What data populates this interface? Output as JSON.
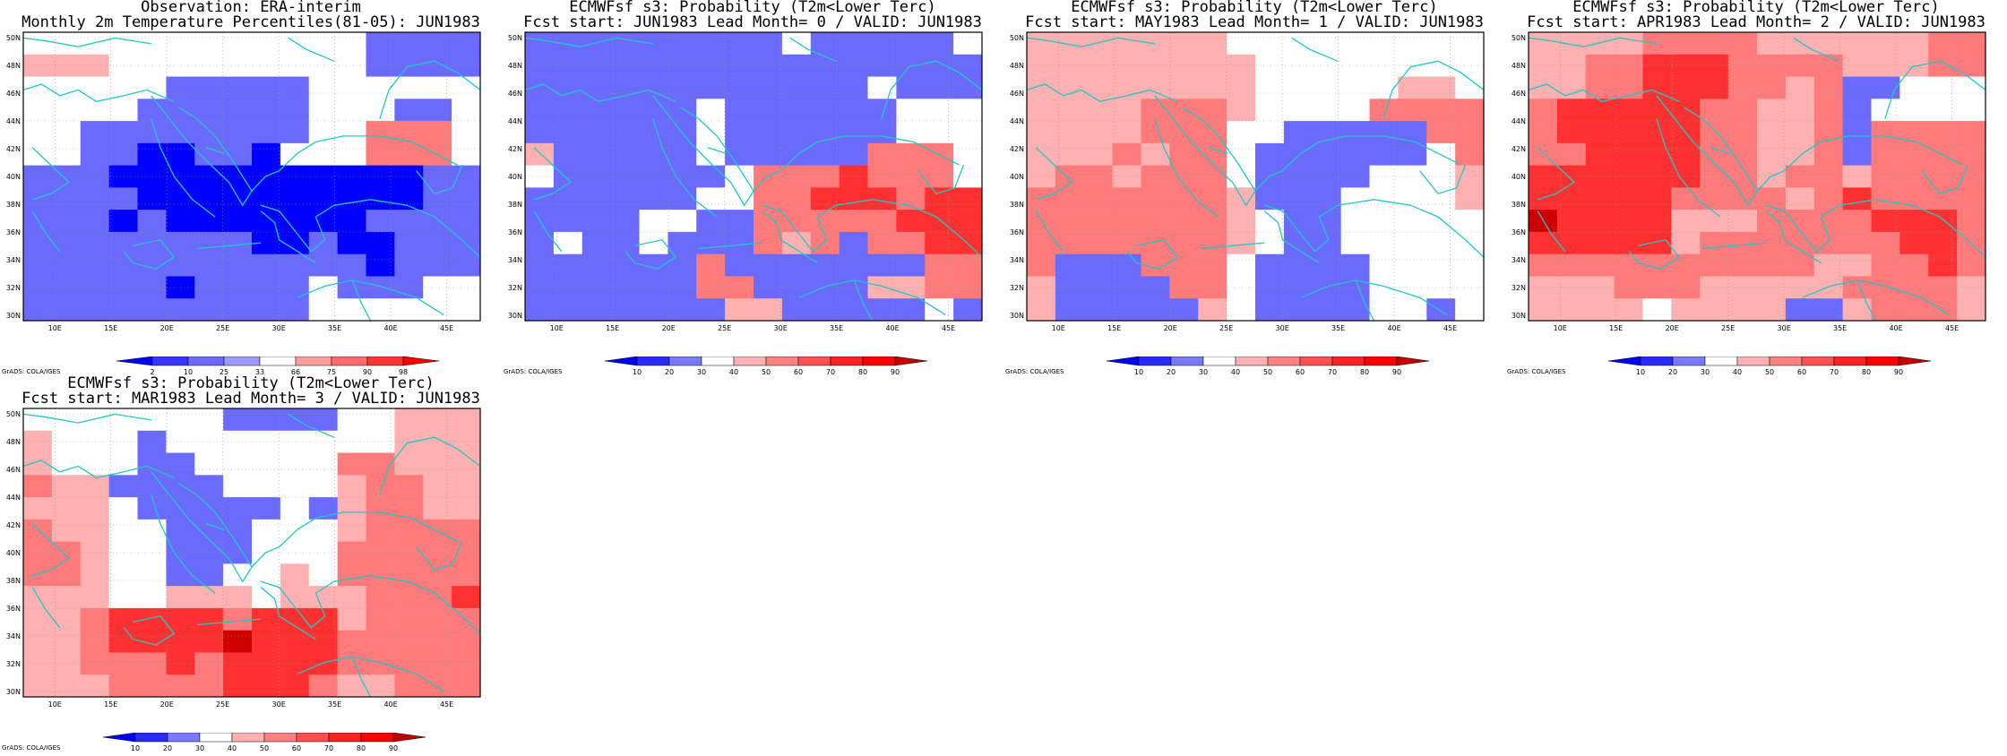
{
  "panels": [
    {
      "title_line1": "Observation: ERA-interim",
      "title_line2": "Monthly 2m Temperature Percentiles(81-05): JUN1983",
      "colorbar": {
        "ticks": [
          "2",
          "10",
          "25",
          "33",
          "66",
          "75",
          "90",
          "98"
        ],
        "colors": [
          "#0000ff",
          "#3535ff",
          "#6a6aff",
          "#9a9aff",
          "#ffffff",
          "#ff9a9a",
          "#ff6a6a",
          "#ff3535",
          "#ff0000"
        ]
      },
      "credit": "GrADS: COLA/IGES",
      "grid": [
        "WWWWWWWWWWWWBBBB",
        "LLLWWWWWWWWWBBBB",
        "WWWWWBBBBBWWWWWW",
        "WWWWBBBBBBWWWBBW",
        "WWBBBBBBBBWWRRRW",
        "WWBBCCBBCWWWRRRW",
        "BBBCCCCCCCCCCCBB",
        "BBBBCCCCCCCCCCBB",
        "BBBCBCCCCCCCBBBB",
        "BBBBBBBBCCBCCBBB",
        "BBBBBBBBBBBBCBBB",
        "BBBBBCBBBBWBBBWW",
        "BBBBBBBBBBWWWWWW"
      ]
    },
    {
      "title_line1": "ECMWFsf s3: Probability (T2m<Lower Terc)",
      "title_line2": "Fcst start: JUN1983  Lead Month= 0 / VALID: JUN1983",
      "colorbar": {
        "ticks": [
          "10",
          "20",
          "30",
          "40",
          "50",
          "60",
          "70",
          "80",
          "90"
        ],
        "colors": [
          "#0000ff",
          "#2a2aff",
          "#7a7aff",
          "#ffffff",
          "#ffb0b0",
          "#ff8080",
          "#ff5050",
          "#ff2020",
          "#ff0000",
          "#c00000"
        ]
      },
      "credit": "GrADS: COLA/IGES",
      "grid": [
        "BBBBBBBBBWBBBBBW",
        "BBBBBBBBBBBBBBBB",
        "BBBBBBBBBBBBWBBB",
        "BBBBBBWBBBBBBWWW",
        "BBBBBBWBBBBBBWWW",
        "LBBBBBWBBBBBRRRW",
        "WBBBBBBWRRRMRRRW",
        "BBBBBBWWRRMMMRMM",
        "BBBBWWBBRRRRRMMM",
        "BWBBWBBBRLRBRRMM",
        "BBBBBBRBBBBBBBRR",
        "BBBBBBRRBBBBLLRR",
        "BBBBBBBLLBBBBBWB"
      ]
    },
    {
      "title_line1": "ECMWFsf s3: Probability (T2m<Lower Terc)",
      "title_line2": "Fcst start: MAY1983  Lead Month= 1 / VALID: JUN1983",
      "colorbar": {
        "ticks": [
          "10",
          "20",
          "30",
          "40",
          "50",
          "60",
          "70",
          "80",
          "90"
        ],
        "colors": [
          "#0000ff",
          "#2a2aff",
          "#7a7aff",
          "#ffffff",
          "#ffb0b0",
          "#ff8080",
          "#ff5050",
          "#ff2020",
          "#ff0000",
          "#c00000"
        ]
      },
      "credit": "GrADS: COLA/IGES",
      "grid": [
        "LLLLLLLWWWWWWWWW",
        "LLLLLLLLWWWWWWWW",
        "LLLLLLLLWWWWWLLW",
        "LLLLRRRLWWWWRRRR",
        "LLLLRRRWWBBBBBRR",
        "LLLRLRRWBBBBBBWR",
        "LRRLRRRWBBBBWWWL",
        "RRRRRRRLBBBWWWWL",
        "RRRRRRRLWBBWWWWW",
        "RRRRRRRLWBBWWWWW",
        "RBBBRRRWBBBBWWWW",
        "LBBBBRRWBBBBWWWW",
        "LBBBBBLWBBBBWWBW"
      ]
    },
    {
      "title_line1": "ECMWFsf s3: Probability (T2m<Lower Terc)",
      "title_line2": "Fcst start: APR1983  Lead Month= 2 / VALID: JUN1983",
      "colorbar": {
        "ticks": [
          "10",
          "20",
          "30",
          "40",
          "50",
          "60",
          "70",
          "80",
          "90"
        ],
        "colors": [
          "#0000ff",
          "#2a2aff",
          "#7a7aff",
          "#ffffff",
          "#ffb0b0",
          "#ff8080",
          "#ff5050",
          "#ff2020",
          "#ff0000",
          "#c00000"
        ]
      },
      "credit": "GrADS: COLA/IGES",
      "grid": [
        "LLLLRRRRLLLLLLRR",
        "LLRRMMMRRRRLLLRR",
        "LLRRMMMRRLRBBWWW",
        "RMMMMMRRLLRBWWWW",
        "RMMMMMRRLLRBRRRR",
        "RRMMMMRRLLRBRRRR",
        "MMMMMMRRLRRLRRRR",
        "MMMMMRRRRLRMRRRR",
        "DMMMMLLLRRRRMMMR",
        "MMMMMLRRRRRRRMMR",
        "RRRRRRRRRRLLRRMR",
        "LLLRRRLLLLLRRRRL",
        "LLLLWLLLLBBLRRRL"
      ]
    },
    {
      "title_line1": "ECMWFsf s3: Probability (T2m<Lower Terc)",
      "title_line2": "Fcst start: MAR1983  Lead Month= 3 / VALID: JUN1983",
      "colorbar": {
        "ticks": [
          "10",
          "20",
          "30",
          "40",
          "50",
          "60",
          "70",
          "80",
          "90"
        ],
        "colors": [
          "#0000ff",
          "#2a2aff",
          "#7a7aff",
          "#ffffff",
          "#ffb0b0",
          "#ff8080",
          "#ff5050",
          "#ff2020",
          "#ff0000",
          "#c00000"
        ]
      },
      "credit": "GrADS: COLA/IGES",
      "grid": [
        "WWWWWWWBBBBWWLLL",
        "LWWWBWWWWWWWWLLL",
        "LWWWBBWWWWWRRLLL",
        "RLLBBBBWWWWLRRLL",
        "LLLWBBBBBWBLRRLL",
        "RLLWWBBBWWWLRRRR",
        "RRLWWBBBWWWRRRRR",
        "RRLWWBBWWLWRRRRR",
        "LLLWWLLLWLLLRRRM",
        "LLRMMMMRMMMLRRRR",
        "LLRMMMMDMMMRRRRR",
        "LLRRRMRMMMMRRRRR",
        "LLLRRRRMMMRLLRRR"
      ]
    }
  ],
  "map_axes": {
    "lon_labels": [
      "10E",
      "15E",
      "20E",
      "25E",
      "30E",
      "35E",
      "40E",
      "45E"
    ],
    "lat_labels": [
      "50N",
      "48N",
      "46N",
      "44N",
      "42N",
      "40N",
      "38N",
      "36N",
      "34N",
      "32N",
      "30N"
    ]
  },
  "cell_colors": {
    "W": "#ffffff",
    "L": "#ffb0b0",
    "R": "#ff7a7a",
    "M": "#ff3030",
    "D": "#d00000",
    "C": "#0000ff",
    "B": "#6a6aff"
  }
}
